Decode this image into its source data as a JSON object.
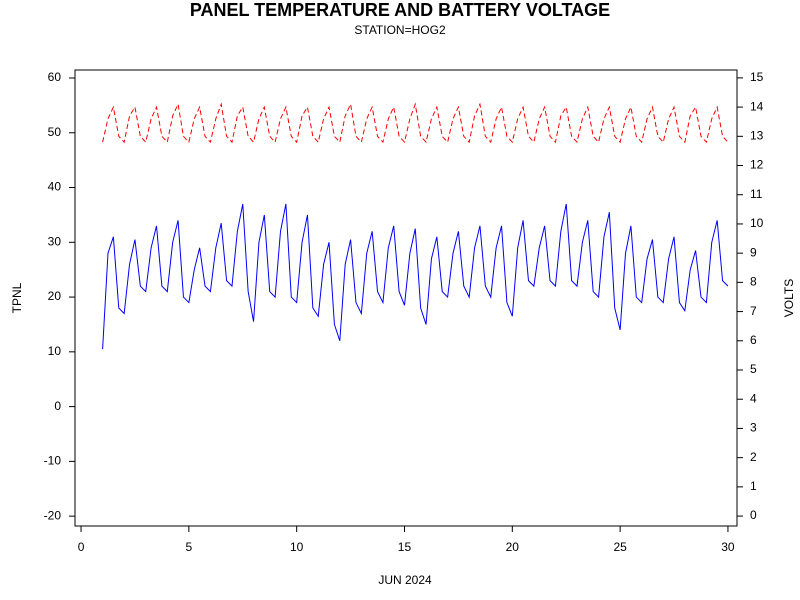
{
  "chart_data": {
    "type": "line",
    "title": "PANEL TEMPERATURE AND BATTERY VOLTAGE",
    "subtitle": "STATION=HOG2",
    "x_label": "JUN 2024",
    "y_label": "TPNL",
    "y2_label": "VOLTS",
    "xlim": [
      -0.28,
      30.42
    ],
    "xticks": [
      0,
      5,
      10,
      15,
      20,
      25,
      30
    ],
    "ylim": [
      -21.8,
      61.46
    ],
    "yticks": [
      -20,
      -10,
      0,
      10,
      20,
      30,
      40,
      50,
      60
    ],
    "y2lim": [
      -0.34,
      15.27
    ],
    "y2ticks": [
      0,
      1,
      2,
      3,
      4,
      5,
      6,
      7,
      8,
      9,
      10,
      11,
      12,
      13,
      14,
      15
    ],
    "x": [
      1,
      1.25,
      1.5,
      1.75,
      2,
      2.25,
      2.5,
      2.75,
      3,
      3.25,
      3.5,
      3.75,
      4,
      4.25,
      4.5,
      4.75,
      5,
      5.25,
      5.5,
      5.75,
      6,
      6.25,
      6.5,
      6.75,
      7,
      7.25,
      7.5,
      7.75,
      8,
      8.25,
      8.5,
      8.75,
      9,
      9.25,
      9.5,
      9.75,
      10,
      10.25,
      10.5,
      10.75,
      11,
      11.25,
      11.5,
      11.75,
      12,
      12.25,
      12.5,
      12.75,
      13,
      13.25,
      13.5,
      13.75,
      14,
      14.25,
      14.5,
      14.75,
      15,
      15.25,
      15.5,
      15.75,
      16,
      16.25,
      16.5,
      16.75,
      17,
      17.25,
      17.5,
      17.75,
      18,
      18.25,
      18.5,
      18.75,
      19,
      19.25,
      19.5,
      19.75,
      20,
      20.25,
      20.5,
      20.75,
      21,
      21.25,
      21.5,
      21.75,
      22,
      22.25,
      22.5,
      22.75,
      23,
      23.25,
      23.5,
      23.75,
      24,
      24.25,
      24.5,
      24.75,
      25,
      25.25,
      25.5,
      25.75,
      26,
      26.25,
      26.5,
      26.75,
      27,
      27.25,
      27.5,
      27.75,
      28,
      28.25,
      28.5,
      28.75,
      29,
      29.25,
      29.5,
      29.75,
      30
    ],
    "series": [
      {
        "name": "TPNL",
        "color": "#0000ff",
        "dash": false,
        "values": [
          10.5,
          28,
          31,
          18,
          17,
          26,
          30.5,
          22,
          21,
          29,
          33,
          22,
          21,
          30,
          34,
          20,
          19,
          25,
          29,
          22,
          21,
          29,
          33.5,
          23,
          22,
          32,
          37,
          21,
          15.5,
          30,
          35,
          21,
          20,
          32,
          37,
          20,
          19,
          30,
          35,
          18,
          16.5,
          26,
          30,
          15,
          12,
          26,
          30.5,
          19,
          17,
          28,
          32,
          21,
          19,
          29,
          33,
          21,
          18.5,
          28,
          32.5,
          18,
          15,
          27,
          31,
          21,
          20,
          28,
          32,
          22,
          20,
          29,
          33,
          22,
          20,
          29,
          33,
          19,
          16.5,
          29,
          34,
          23,
          22,
          29,
          33,
          23,
          22,
          32,
          37,
          23,
          22,
          30,
          34,
          21,
          20,
          31,
          35.5,
          18,
          14,
          28,
          33,
          20,
          19,
          27,
          30.5,
          20,
          19,
          27,
          31,
          19,
          17.5,
          25,
          28.5,
          20,
          19,
          30,
          34,
          23,
          22
        ]
      },
      {
        "name": "VOLTS",
        "color": "#ff0000",
        "dash": true,
        "axis": "y2",
        "values": [
          12.8,
          13.6,
          14.0,
          13.0,
          12.8,
          13.7,
          14.0,
          13.0,
          12.8,
          13.6,
          14.0,
          13.0,
          12.8,
          13.7,
          14.1,
          13.0,
          12.8,
          13.6,
          14.0,
          13.0,
          12.8,
          13.6,
          14.1,
          13.0,
          12.8,
          13.7,
          14.0,
          13.0,
          12.8,
          13.6,
          14.0,
          13.0,
          12.8,
          13.6,
          14.0,
          13.0,
          12.8,
          13.7,
          14.0,
          13.0,
          12.8,
          13.6,
          14.0,
          13.0,
          12.8,
          13.7,
          14.1,
          13.0,
          12.8,
          13.6,
          14.0,
          13.0,
          12.8,
          13.6,
          14.0,
          13.0,
          12.8,
          13.6,
          14.1,
          13.0,
          12.8,
          13.6,
          14.0,
          13.0,
          12.8,
          13.6,
          14.0,
          13.0,
          12.8,
          13.7,
          14.1,
          13.0,
          12.8,
          13.6,
          14.0,
          13.0,
          12.8,
          13.6,
          14.0,
          13.0,
          12.8,
          13.6,
          14.0,
          13.0,
          12.8,
          13.7,
          14.0,
          13.0,
          12.8,
          13.6,
          14.0,
          13.0,
          12.8,
          13.6,
          14.0,
          13.0,
          12.8,
          13.6,
          14.0,
          13.0,
          12.8,
          13.6,
          14.0,
          13.0,
          12.8,
          13.6,
          14.0,
          13.0,
          12.8,
          13.7,
          14.0,
          13.0,
          12.8,
          13.6,
          14.0,
          13.0,
          12.8
        ]
      }
    ]
  }
}
